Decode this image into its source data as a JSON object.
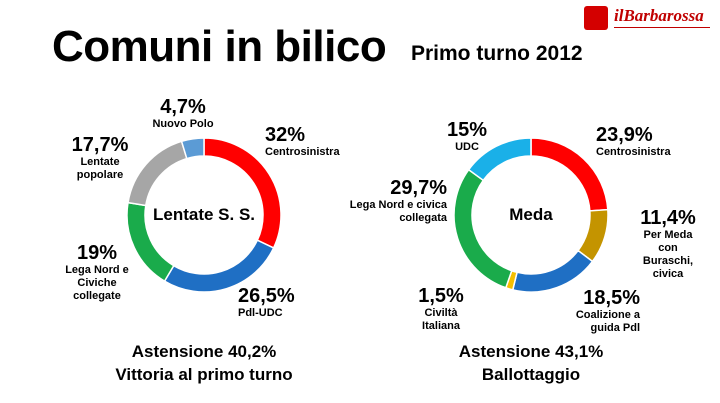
{
  "title": "Comuni in bilico",
  "subtitle": "Primo turno 2012",
  "logo": "ilBarbarossa",
  "chart_data": [
    {
      "type": "donut",
      "center_label": "Lentate S. S.",
      "categories": [
        "Centrosinistra",
        "Pdl-UDC",
        "Lega Nord e\nCiviche\ncollegate",
        "Lentate\npopolare",
        "Nuovo Polo"
      ],
      "values": [
        32,
        26.5,
        19,
        17.7,
        4.7
      ],
      "value_labels": [
        "32%",
        "26,5%",
        "19%",
        "17,7%",
        "4,7%"
      ],
      "colors": [
        "#ff0000",
        "#1f6fc4",
        "#1aab4b",
        "#a6a6a6",
        "#5b9bd5"
      ],
      "footer": [
        "Astensione 40,2%",
        "Vittoria al primo turno"
      ]
    },
    {
      "type": "donut",
      "center_label": "Meda",
      "categories": [
        "Centrosinistra",
        "Per Meda con\nBuraschi,\ncivica",
        "Coalizione a guida Pdl",
        "Civiltà\nItaliana",
        "Lega Nord e civica\ncollegata",
        "UDC"
      ],
      "values": [
        23.9,
        11.4,
        18.5,
        1.5,
        29.7,
        15
      ],
      "value_labels": [
        "23,9%",
        "11,4%",
        "18,5%",
        "1,5%",
        "29,7%",
        "15%"
      ],
      "colors": [
        "#ff0000",
        "#c49400",
        "#1f6fc4",
        "#f5c000",
        "#1aab4b",
        "#1ab0e8"
      ],
      "footer": [
        "Astensione 43,1%",
        "Ballottaggio"
      ]
    }
  ]
}
